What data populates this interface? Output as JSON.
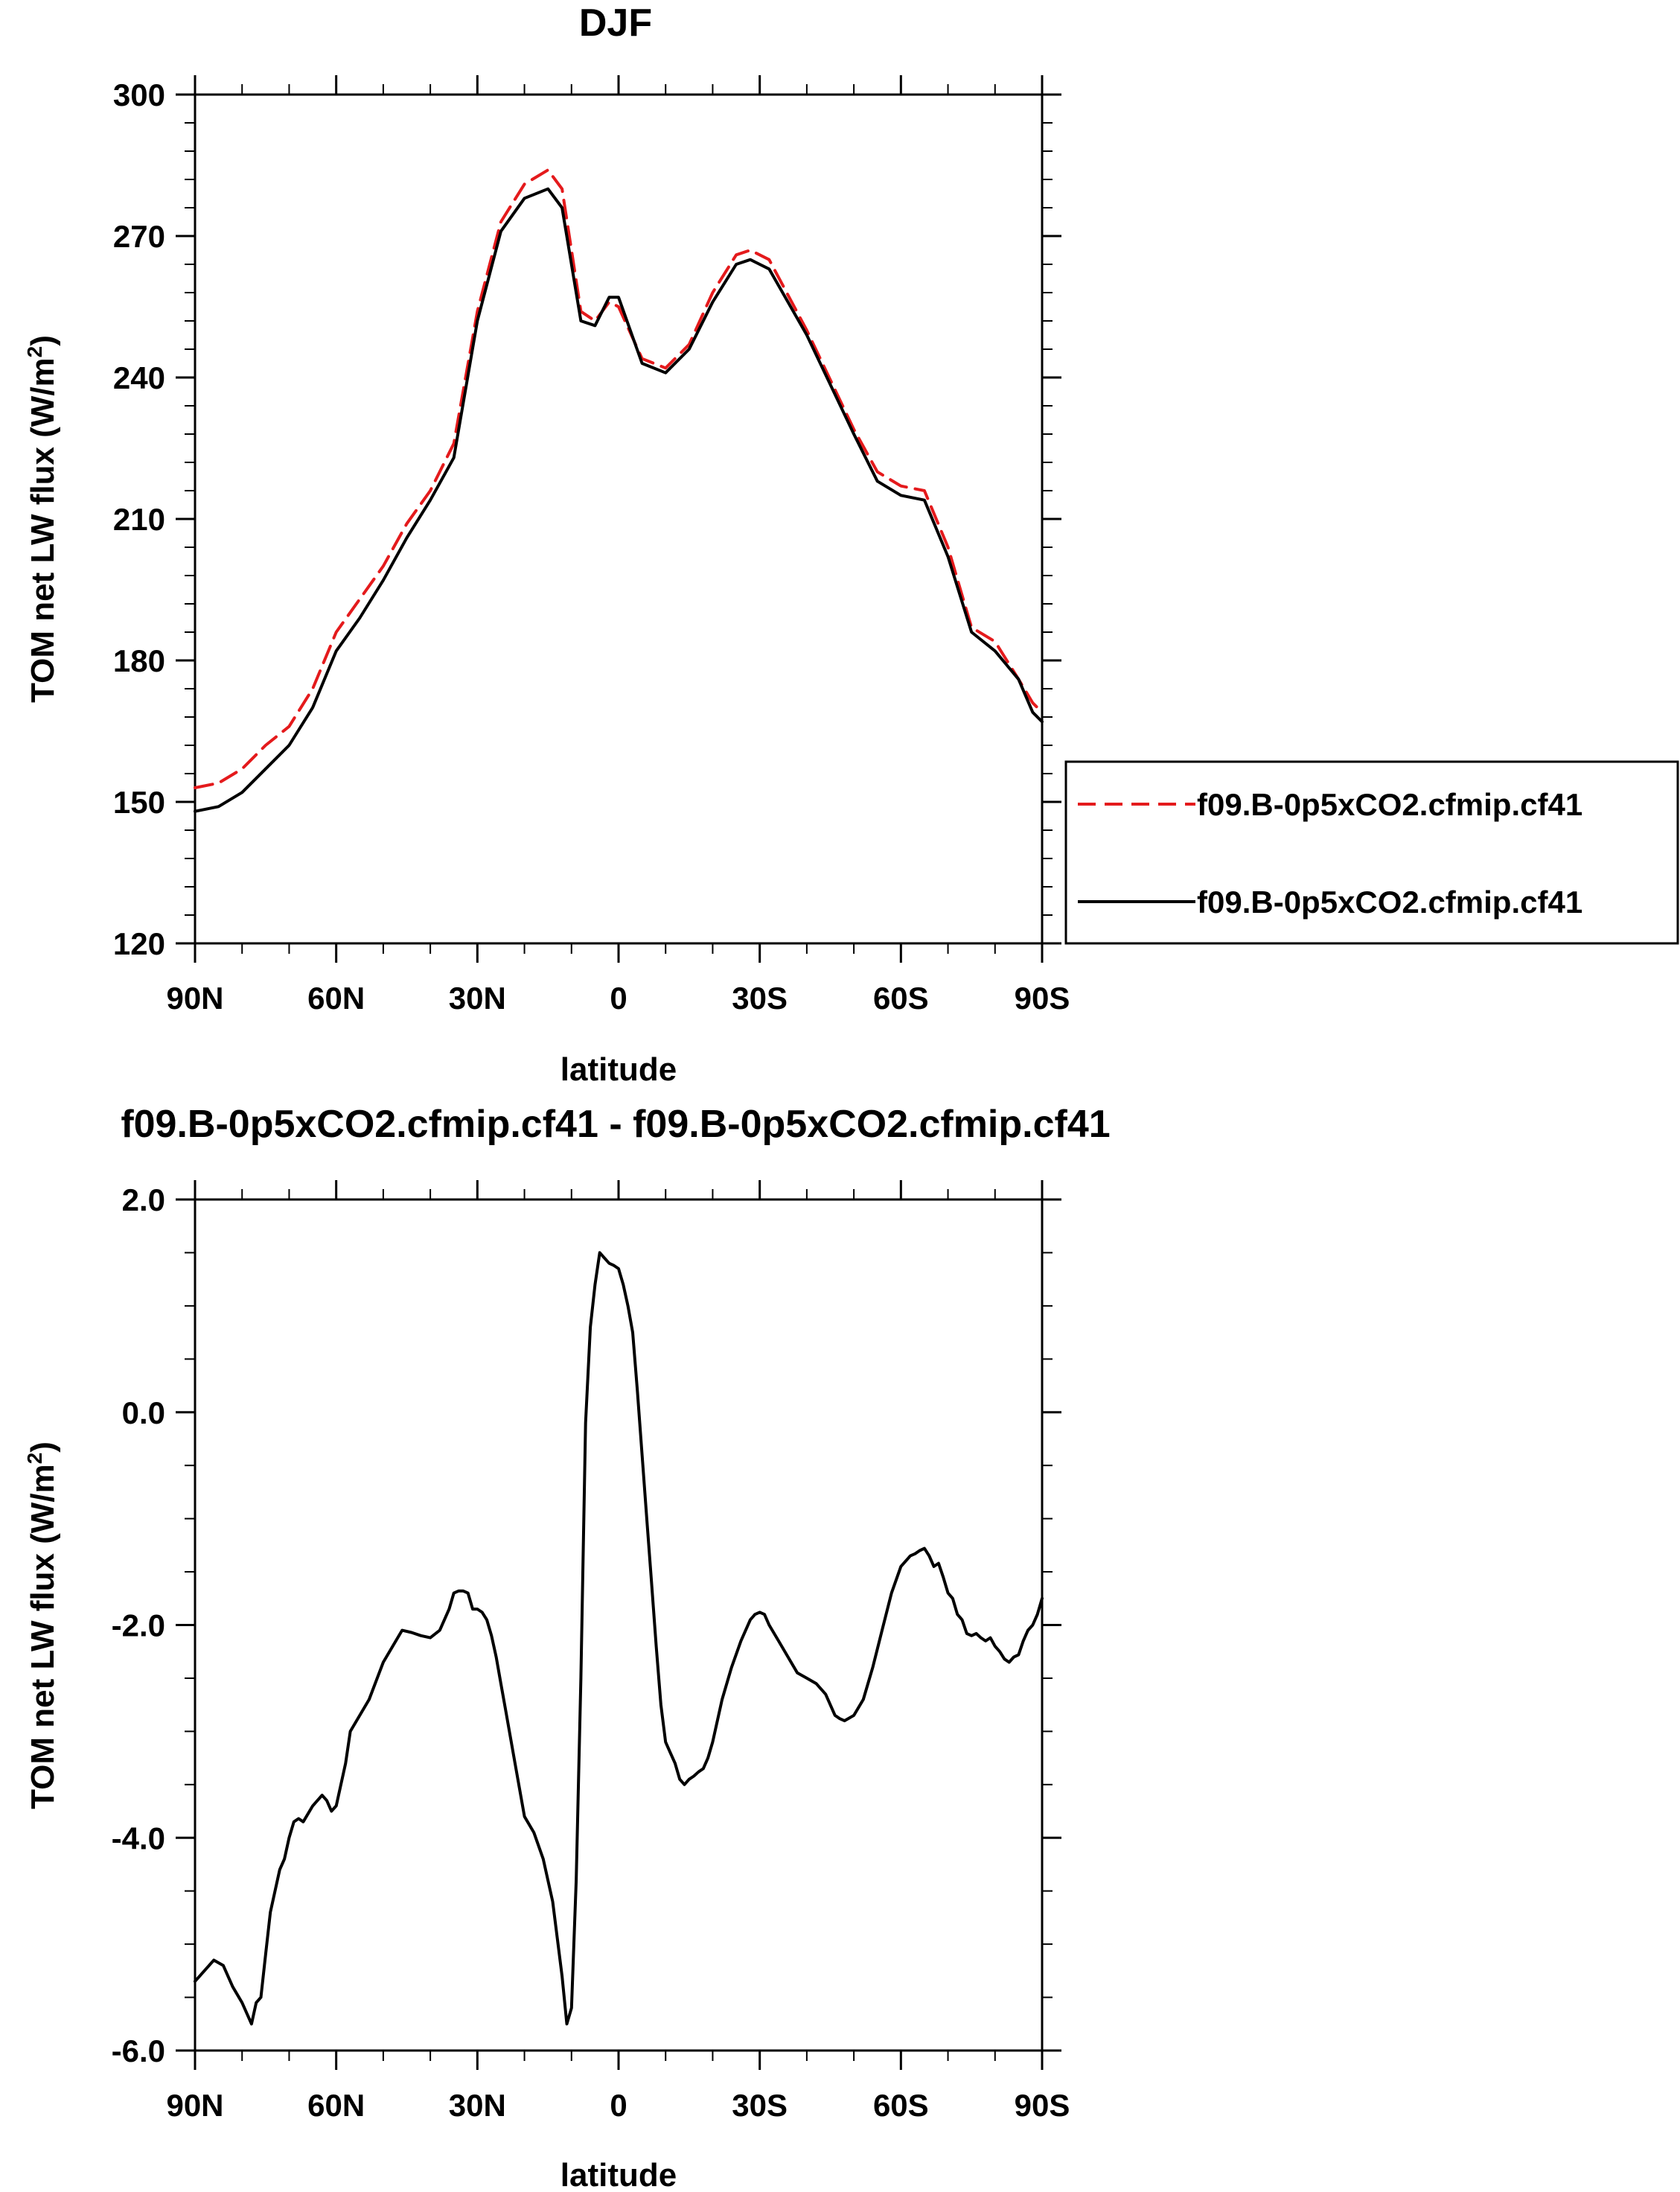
{
  "chart_data": [
    {
      "type": "line",
      "title": "DJF",
      "xlabel": "latitude",
      "ylabel": "TOM net LW flux (W/m",
      "ylabel_sup": "2",
      "ylabel_tail": ")",
      "xlim": [
        90,
        -90
      ],
      "ylim": [
        120,
        300
      ],
      "x_ticks": [
        {
          "value": 90,
          "label": "90N"
        },
        {
          "value": 60,
          "label": "60N"
        },
        {
          "value": 30,
          "label": "30N"
        },
        {
          "value": 0,
          "label": "0"
        },
        {
          "value": -30,
          "label": "30S"
        },
        {
          "value": -60,
          "label": "60S"
        },
        {
          "value": -90,
          "label": "90S"
        }
      ],
      "y_ticks": [
        {
          "value": 120,
          "label": "120"
        },
        {
          "value": 150,
          "label": "150"
        },
        {
          "value": 180,
          "label": "180"
        },
        {
          "value": 210,
          "label": "210"
        },
        {
          "value": 240,
          "label": "240"
        },
        {
          "value": 270,
          "label": "270"
        },
        {
          "value": 300,
          "label": "300"
        }
      ],
      "legend_placement": "right",
      "series": [
        {
          "name": "f09.B-0p5xCO2.cfmip.cf41",
          "color": "#e41a1c",
          "dash": "dashed",
          "x": [
            90,
            85,
            80,
            75,
            70,
            65,
            60,
            55,
            50,
            45,
            40,
            35,
            30,
            25,
            20,
            15,
            12,
            8,
            5,
            2,
            0,
            -5,
            -10,
            -15,
            -20,
            -25,
            -28,
            -32,
            -40,
            -50,
            -55,
            -60,
            -65,
            -70,
            -75,
            -80,
            -85,
            -88,
            -90
          ],
          "y": [
            153,
            154,
            157,
            162,
            166,
            174,
            186,
            193,
            200,
            209,
            216,
            226,
            254,
            273,
            281,
            284,
            280,
            254,
            252,
            256,
            255,
            244,
            242,
            247,
            258,
            266,
            267,
            265,
            250,
            229,
            220,
            217,
            216,
            204,
            187,
            184,
            176,
            171,
            169
          ]
        },
        {
          "name": "f09.B-0p5xCO2.cfmip.cf41",
          "color": "#000000",
          "dash": "solid",
          "x": [
            90,
            85,
            80,
            75,
            70,
            65,
            60,
            55,
            50,
            45,
            40,
            35,
            30,
            25,
            20,
            15,
            12,
            8,
            5,
            2,
            0,
            -5,
            -10,
            -15,
            -20,
            -25,
            -28,
            -32,
            -40,
            -50,
            -55,
            -60,
            -65,
            -70,
            -75,
            -80,
            -85,
            -88,
            -90
          ],
          "y": [
            148,
            149,
            152,
            157,
            162,
            170,
            182,
            189,
            197,
            206,
            214,
            223,
            252,
            271,
            278,
            280,
            276,
            252,
            251,
            257,
            257,
            243,
            241,
            246,
            256,
            264,
            265,
            263,
            249,
            228,
            218,
            215,
            214,
            202,
            186,
            182,
            176,
            169,
            167
          ]
        }
      ]
    },
    {
      "type": "line",
      "title": "f09.B-0p5xCO2.cfmip.cf41 - f09.B-0p5xCO2.cfmip.cf41",
      "xlabel": "latitude",
      "ylabel": "TOM net LW flux (W/m",
      "ylabel_sup": "2",
      "ylabel_tail": ")",
      "xlim": [
        90,
        -90
      ],
      "ylim": [
        -6.0,
        2.0
      ],
      "x_ticks": [
        {
          "value": 90,
          "label": "90N"
        },
        {
          "value": 60,
          "label": "60N"
        },
        {
          "value": 30,
          "label": "30N"
        },
        {
          "value": 0,
          "label": "0"
        },
        {
          "value": -30,
          "label": "30S"
        },
        {
          "value": -60,
          "label": "60S"
        },
        {
          "value": -90,
          "label": "90S"
        }
      ],
      "y_ticks": [
        {
          "value": -6.0,
          "label": "-6.0"
        },
        {
          "value": -4.0,
          "label": "-4.0"
        },
        {
          "value": -2.0,
          "label": "-2.0"
        },
        {
          "value": 0.0,
          "label": "0.0"
        },
        {
          "value": 2.0,
          "label": "2.0"
        }
      ],
      "series": [
        {
          "color": "#000000",
          "dash": "solid",
          "x": [
            90,
            86,
            84,
            82,
            80,
            78,
            77,
            76,
            75,
            74,
            73,
            72,
            71,
            70,
            69,
            68,
            67,
            65,
            63,
            62,
            61,
            60,
            58,
            57,
            55,
            53,
            50,
            48,
            46,
            44,
            42,
            40,
            38,
            36,
            35,
            34,
            33,
            32,
            31,
            30,
            29,
            28,
            27,
            26,
            25,
            24,
            23,
            22,
            20,
            18,
            16,
            14,
            12,
            11,
            10,
            9,
            8,
            7,
            6,
            5,
            4,
            3,
            2,
            1,
            0,
            -1,
            -2,
            -3,
            -4,
            -5,
            -6,
            -7,
            -8,
            -9,
            -10,
            -11,
            -12,
            -13,
            -14,
            -15,
            -16,
            -17,
            -18,
            -19,
            -20,
            -22,
            -24,
            -26,
            -28,
            -29,
            -30,
            -31,
            -32,
            -34,
            -36,
            -38,
            -40,
            -42,
            -44,
            -45,
            -46,
            -47,
            -48,
            -50,
            -52,
            -54,
            -56,
            -58,
            -60,
            -62,
            -63,
            -64,
            -65,
            -66,
            -67,
            -68,
            -69,
            -70,
            -71,
            -72,
            -73,
            -74,
            -75,
            -76,
            -77,
            -78,
            -79,
            -80,
            -81,
            -82,
            -83,
            -84,
            -85,
            -86,
            -87,
            -88,
            -89,
            -90
          ],
          "y": [
            -5.35,
            -5.15,
            -5.2,
            -5.4,
            -5.55,
            -5.75,
            -5.55,
            -5.5,
            -5.1,
            -4.7,
            -4.5,
            -4.3,
            -4.2,
            -4.0,
            -3.85,
            -3.82,
            -3.85,
            -3.7,
            -3.6,
            -3.65,
            -3.75,
            -3.7,
            -3.3,
            -3.0,
            -2.85,
            -2.7,
            -2.35,
            -2.2,
            -2.05,
            -2.07,
            -2.1,
            -2.12,
            -2.05,
            -1.85,
            -1.7,
            -1.68,
            -1.68,
            -1.7,
            -1.85,
            -1.85,
            -1.88,
            -1.95,
            -2.1,
            -2.3,
            -2.55,
            -2.8,
            -3.05,
            -3.3,
            -3.8,
            -3.95,
            -4.2,
            -4.6,
            -5.3,
            -5.75,
            -5.6,
            -4.4,
            -2.5,
            -0.1,
            0.8,
            1.2,
            1.5,
            1.45,
            1.4,
            1.38,
            1.35,
            1.2,
            1.0,
            0.75,
            0.2,
            -0.4,
            -1.0,
            -1.6,
            -2.2,
            -2.75,
            -3.1,
            -3.2,
            -3.3,
            -3.45,
            -3.5,
            -3.45,
            -3.42,
            -3.38,
            -3.35,
            -3.25,
            -3.1,
            -2.7,
            -2.4,
            -2.15,
            -1.95,
            -1.9,
            -1.88,
            -1.9,
            -2.0,
            -2.15,
            -2.3,
            -2.45,
            -2.5,
            -2.55,
            -2.65,
            -2.75,
            -2.85,
            -2.88,
            -2.9,
            -2.85,
            -2.7,
            -2.4,
            -2.05,
            -1.7,
            -1.45,
            -1.35,
            -1.33,
            -1.3,
            -1.28,
            -1.35,
            -1.45,
            -1.42,
            -1.55,
            -1.7,
            -1.75,
            -1.9,
            -1.95,
            -2.08,
            -2.1,
            -2.08,
            -2.12,
            -2.15,
            -2.12,
            -2.2,
            -2.25,
            -2.32,
            -2.35,
            -2.3,
            -2.28,
            -2.15,
            -2.05,
            -2.0,
            -1.9,
            -1.75
          ]
        }
      ]
    }
  ]
}
